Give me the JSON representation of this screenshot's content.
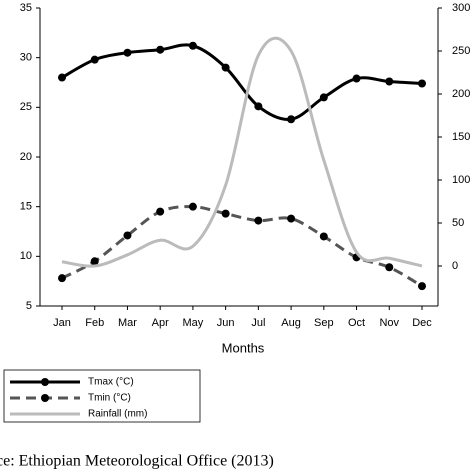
{
  "chart_data": {
    "type": "line",
    "xlabel": "Months",
    "categories": [
      "Jan",
      "Feb",
      "Mar",
      "Apr",
      "May",
      "Jun",
      "Jul",
      "Aug",
      "Sep",
      "Oct",
      "Nov",
      "Dec"
    ],
    "series": [
      {
        "name": "Tmax (°C)",
        "color": "#000000",
        "values": [
          28,
          29.8,
          30.5,
          30.8,
          31.2,
          29,
          25.1,
          23.8,
          26,
          27.9,
          27.6,
          27.4
        ]
      },
      {
        "name": "Tmin (°C)",
        "color": "#555555",
        "values": [
          7.8,
          9.5,
          12.1,
          14.5,
          15,
          14.3,
          13.6,
          13.8,
          12,
          9.9,
          8.9,
          7
        ]
      },
      {
        "name": "Rainfall (mm)",
        "color": "#bbbbbb",
        "axis": "y2",
        "values": [
          5,
          0,
          13,
          30,
          23,
          94,
          245,
          250,
          123,
          16,
          9,
          0
        ]
      }
    ],
    "ylim": [
      5,
      35
    ],
    "yticks": [
      5,
      10,
      15,
      20,
      25,
      30,
      35
    ],
    "y2lim": [
      -46.5,
      300
    ],
    "y2ticks": [
      0,
      50,
      100,
      150,
      200,
      250,
      300
    ],
    "legend": "bottom-left",
    "source": "ce: Ethiopian Meteorological Office (2013)"
  }
}
